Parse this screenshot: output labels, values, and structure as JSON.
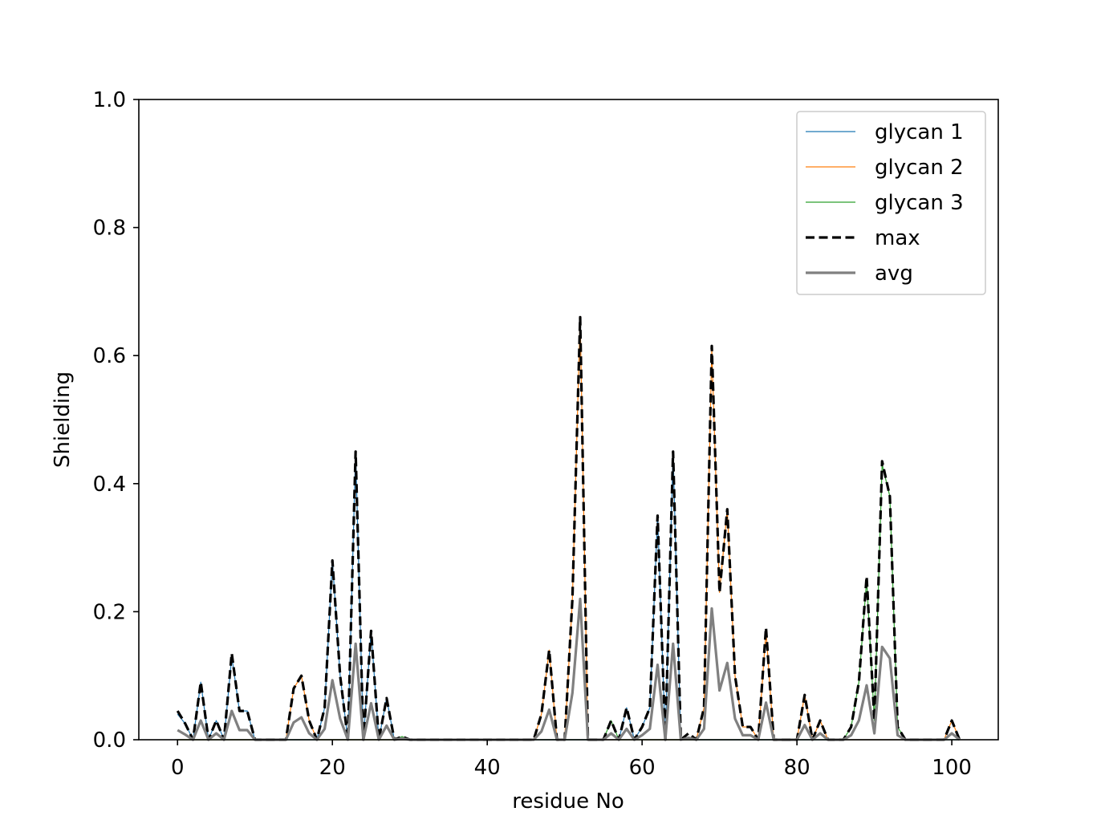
{
  "chart_data": {
    "type": "line",
    "title": "",
    "xlabel": "residue No",
    "ylabel": "Shielding",
    "xlim": [
      -5,
      106
    ],
    "ylim": [
      0,
      1.0
    ],
    "xticks": [
      0,
      20,
      40,
      60,
      80,
      100
    ],
    "xtick_labels": [
      "0",
      "20",
      "40",
      "60",
      "80",
      "100"
    ],
    "yticks": [
      0.0,
      0.2,
      0.4,
      0.6,
      0.8,
      1.0
    ],
    "ytick_labels": [
      "0.0",
      "0.2",
      "0.4",
      "0.6",
      "0.8",
      "1.0"
    ],
    "grid": false,
    "legend_position": "top-right",
    "x": [
      0,
      1,
      2,
      3,
      4,
      5,
      6,
      7,
      8,
      9,
      10,
      11,
      12,
      13,
      14,
      15,
      16,
      17,
      18,
      19,
      20,
      21,
      22,
      23,
      24,
      25,
      26,
      27,
      28,
      29,
      30,
      31,
      32,
      33,
      34,
      35,
      36,
      37,
      38,
      39,
      40,
      41,
      42,
      43,
      44,
      45,
      46,
      47,
      48,
      49,
      50,
      51,
      52,
      53,
      54,
      55,
      56,
      57,
      58,
      59,
      60,
      61,
      62,
      63,
      64,
      65,
      66,
      67,
      68,
      69,
      70,
      71,
      72,
      73,
      74,
      75,
      76,
      77,
      78,
      79,
      80,
      81,
      82,
      83,
      84,
      85,
      86,
      87,
      88,
      89,
      90,
      91,
      92,
      93,
      94,
      95,
      96,
      97,
      98,
      99,
      100,
      101
    ],
    "series": [
      {
        "name": "glycan 1",
        "color": "#1f77b4",
        "style": "solid-thin",
        "values": [
          0.04,
          0.025,
          0.0,
          0.09,
          0.0,
          0.03,
          0.0,
          0.13,
          0.045,
          0.045,
          0.0,
          0.0,
          0.0,
          0.0,
          0.0,
          0.0,
          0.0,
          0.0,
          0.0,
          0.05,
          0.28,
          0.1,
          0.0,
          0.45,
          0.0,
          0.17,
          0.0,
          0.065,
          0.0,
          0.0,
          0.0,
          0.0,
          0.0,
          0.0,
          0.0,
          0.0,
          0.0,
          0.0,
          0.0,
          0.0,
          0.0,
          0.0,
          0.0,
          0.0,
          0.0,
          0.0,
          0.0,
          0.0,
          0.0,
          0.0,
          0.0,
          0.0,
          0.0,
          0.0,
          0.0,
          0.0,
          0.0,
          0.0,
          0.05,
          0.0,
          0.02,
          0.05,
          0.35,
          0.0,
          0.45,
          0.0,
          0.0,
          0.0,
          0.0,
          0.0,
          0.0,
          0.0,
          0.0,
          0.0,
          0.0,
          0.0,
          0.0,
          0.0,
          0.0,
          0.0,
          0.0,
          0.0,
          0.0,
          0.0,
          0.0,
          0.0,
          0.0,
          0.0,
          0.0,
          0.0,
          0.0,
          0.0,
          0.0,
          0.0,
          0.0,
          0.0,
          0.0,
          0.0,
          0.0,
          0.0,
          0.0,
          0.0
        ]
      },
      {
        "name": "glycan 2",
        "color": "#ff7f0e",
        "style": "solid-thin",
        "values": [
          0.0,
          0.0,
          0.0,
          0.0,
          0.0,
          0.0,
          0.0,
          0.0,
          0.0,
          0.0,
          0.0,
          0.0,
          0.0,
          0.0,
          0.0,
          0.08,
          0.1,
          0.03,
          0.0,
          0.0,
          0.0,
          0.0,
          0.0,
          0.0,
          0.0,
          0.0,
          0.0,
          0.0,
          0.0,
          0.0,
          0.0,
          0.0,
          0.0,
          0.0,
          0.0,
          0.0,
          0.0,
          0.0,
          0.0,
          0.0,
          0.0,
          0.0,
          0.0,
          0.0,
          0.0,
          0.0,
          0.0,
          0.04,
          0.14,
          0.0,
          0.0,
          0.22,
          0.66,
          0.0,
          0.0,
          0.0,
          0.0,
          0.0,
          0.0,
          0.0,
          0.0,
          0.0,
          0.0,
          0.0,
          0.0,
          0.0,
          0.0,
          0.0,
          0.05,
          0.61,
          0.23,
          0.36,
          0.1,
          0.02,
          0.02,
          0.0,
          0.17,
          0.0,
          0.0,
          0.0,
          0.0,
          0.07,
          0.0,
          0.03,
          0.0,
          0.0,
          0.0,
          0.0,
          0.0,
          0.0,
          0.0,
          0.0,
          0.0,
          0.0,
          0.0,
          0.0,
          0.0,
          0.0,
          0.0,
          0.0,
          0.03,
          0.0
        ]
      },
      {
        "name": "glycan 3",
        "color": "#2ca02c",
        "style": "solid-thin",
        "values": [
          0.0,
          0.0,
          0.0,
          0.0,
          0.0,
          0.0,
          0.0,
          0.0,
          0.0,
          0.0,
          0.0,
          0.0,
          0.0,
          0.0,
          0.0,
          0.0,
          0.0,
          0.0,
          0.0,
          0.0,
          0.0,
          0.0,
          0.0,
          0.0,
          0.0,
          0.0,
          0.0,
          0.0,
          0.0,
          0.005,
          0.0,
          0.0,
          0.0,
          0.0,
          0.0,
          0.0,
          0.0,
          0.0,
          0.0,
          0.0,
          0.0,
          0.0,
          0.0,
          0.0,
          0.0,
          0.0,
          0.0,
          0.0,
          0.0,
          0.0,
          0.0,
          0.0,
          0.0,
          0.0,
          0.0,
          0.0,
          0.03,
          0.0,
          0.0,
          0.0,
          0.0,
          0.0,
          0.0,
          0.0,
          0.0,
          0.0,
          0.0,
          0.0,
          0.0,
          0.0,
          0.0,
          0.0,
          0.0,
          0.0,
          0.0,
          0.0,
          0.0,
          0.0,
          0.0,
          0.0,
          0.0,
          0.0,
          0.0,
          0.0,
          0.0,
          0.0,
          0.0,
          0.02,
          0.09,
          0.25,
          0.03,
          0.43,
          0.38,
          0.02,
          0.0,
          0.0,
          0.0,
          0.0,
          0.0,
          0.0,
          0.0,
          0.0
        ]
      },
      {
        "name": "max",
        "color": "#000000",
        "style": "dashed",
        "values": [
          0.045,
          0.025,
          0.0,
          0.09,
          0.0,
          0.03,
          0.0,
          0.135,
          0.045,
          0.045,
          0.0,
          0.0,
          0.0,
          0.0,
          0.0,
          0.08,
          0.1,
          0.03,
          0.0,
          0.05,
          0.28,
          0.1,
          0.0,
          0.45,
          0.0,
          0.17,
          0.0,
          0.065,
          0.0,
          0.005,
          0.0,
          0.0,
          0.0,
          0.0,
          0.0,
          0.0,
          0.0,
          0.0,
          0.0,
          0.0,
          0.0,
          0.0,
          0.0,
          0.0,
          0.0,
          0.0,
          0.0,
          0.04,
          0.14,
          0.0,
          0.0,
          0.22,
          0.66,
          0.0,
          0.0,
          0.0,
          0.03,
          0.0,
          0.05,
          0.0,
          0.02,
          0.05,
          0.35,
          0.0,
          0.45,
          0.0,
          0.01,
          0.0,
          0.05,
          0.615,
          0.23,
          0.36,
          0.1,
          0.02,
          0.02,
          0.0,
          0.175,
          0.0,
          0.0,
          0.0,
          0.0,
          0.07,
          0.0,
          0.03,
          0.0,
          0.0,
          0.0,
          0.02,
          0.09,
          0.255,
          0.03,
          0.435,
          0.38,
          0.02,
          0.0,
          0.0,
          0.0,
          0.0,
          0.0,
          0.0,
          0.03,
          0.0
        ]
      },
      {
        "name": "avg",
        "color": "#808080",
        "style": "solid-thick",
        "values": [
          0.015,
          0.008,
          0.0,
          0.03,
          0.0,
          0.01,
          0.0,
          0.045,
          0.015,
          0.015,
          0.0,
          0.0,
          0.0,
          0.0,
          0.0,
          0.027,
          0.035,
          0.01,
          0.0,
          0.017,
          0.093,
          0.033,
          0.0,
          0.15,
          0.0,
          0.057,
          0.0,
          0.022,
          0.0,
          0.002,
          0.0,
          0.0,
          0.0,
          0.0,
          0.0,
          0.0,
          0.0,
          0.0,
          0.0,
          0.0,
          0.0,
          0.0,
          0.0,
          0.0,
          0.0,
          0.0,
          0.0,
          0.013,
          0.047,
          0.0,
          0.0,
          0.073,
          0.22,
          0.0,
          0.0,
          0.0,
          0.01,
          0.0,
          0.017,
          0.0,
          0.007,
          0.017,
          0.117,
          0.0,
          0.15,
          0.0,
          0.003,
          0.0,
          0.017,
          0.205,
          0.077,
          0.12,
          0.033,
          0.007,
          0.007,
          0.0,
          0.058,
          0.0,
          0.0,
          0.0,
          0.0,
          0.023,
          0.0,
          0.01,
          0.0,
          0.0,
          0.0,
          0.007,
          0.03,
          0.085,
          0.01,
          0.145,
          0.127,
          0.007,
          0.0,
          0.0,
          0.0,
          0.0,
          0.0,
          0.0,
          0.01,
          0.0
        ]
      }
    ]
  }
}
